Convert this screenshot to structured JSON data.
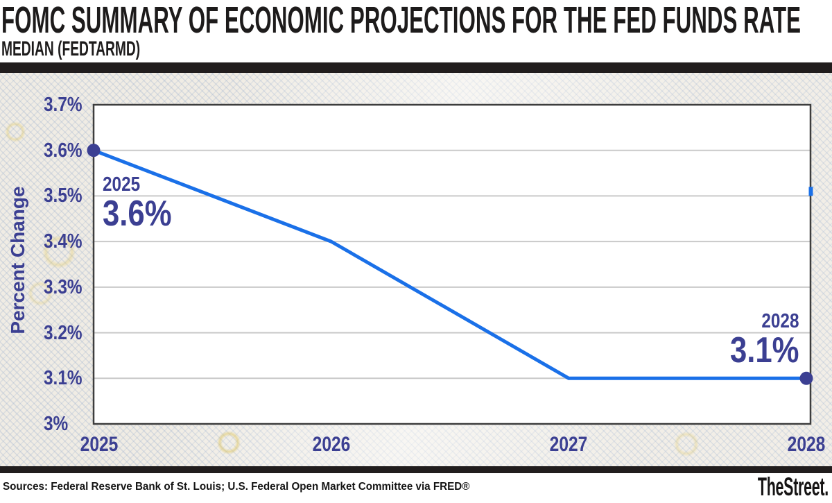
{
  "header": {
    "title": "FOMC SUMMARY OF ECONOMIC PROJECTIONS FOR THE FED FUNDS RATE",
    "subtitle": "MEDIAN (FEDTARMD)"
  },
  "chart_data": {
    "type": "line",
    "title": "FOMC SUMMARY OF ECONOMIC PROJECTIONS FOR THE FED FUNDS RATE",
    "subtitle": "MEDIAN (FEDTARMD)",
    "x": [
      2025,
      2026,
      2027,
      2028
    ],
    "values": [
      3.6,
      3.4,
      3.1,
      3.1
    ],
    "x_ticks": [
      "2025",
      "2026",
      "2027",
      "2028"
    ],
    "y_ticks": [
      {
        "label": "3.7%",
        "value": 3.7
      },
      {
        "label": "3.6%",
        "value": 3.6
      },
      {
        "label": "3.5%",
        "value": 3.5
      },
      {
        "label": "3.4%",
        "value": 3.4
      },
      {
        "label": "3.3%",
        "value": 3.3
      },
      {
        "label": "3.2%",
        "value": 3.2
      },
      {
        "label": "3.1%",
        "value": 3.1
      },
      {
        "label": "3%",
        "value": 3.0
      }
    ],
    "xlabel": "",
    "ylabel": "Percent Change",
    "ylim": [
      3.0,
      3.7
    ],
    "grid": true,
    "legend_position": "none",
    "annotations": [
      {
        "x": 2025,
        "y": 3.6,
        "year_label": "2025",
        "value_label": "3.6%",
        "align": "left"
      },
      {
        "x": 2028,
        "y": 3.1,
        "year_label": "2028",
        "value_label": "3.1%",
        "align": "right"
      }
    ],
    "right_axis_tick": {
      "value": 3.51
    },
    "colors": {
      "line": "#1a70e8",
      "marker": "#3b3f92",
      "grid": "#c9c9c9",
      "plot_border": "#3d3d3d",
      "axis_text": "#3b3f92",
      "plot_background": "#ffffff"
    }
  },
  "footer": {
    "sources": "Sources: Federal Reserve Bank of St. Louis; U.S. Federal Open Market Committee via FRED®",
    "brand": "TheStreet."
  }
}
